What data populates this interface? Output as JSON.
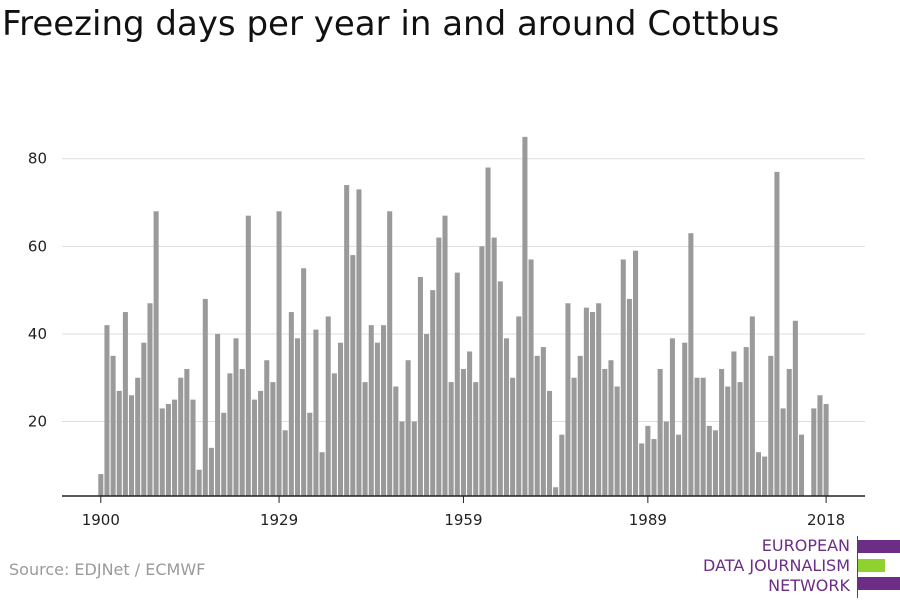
{
  "title": "Freezing days per year in and around Cottbus",
  "source": "Source: EDJNet / ECMWF",
  "logo": {
    "line1": "EUROPEAN",
    "line2": "DATA JOURNALISM",
    "line3": "NETWORK",
    "colors": [
      "#6b2d86",
      "#8fd12e",
      "#6b2d86"
    ]
  },
  "chart_data": {
    "type": "bar",
    "x_start": 1900,
    "x_end": 2018,
    "xticks": [
      1900,
      1929,
      1959,
      1989,
      2018
    ],
    "yticks": [
      20,
      40,
      60,
      80
    ],
    "ylim": [
      3,
      88
    ],
    "grid": true,
    "bar_color": "#9a9a9a",
    "values": [
      8,
      42,
      35,
      27,
      45,
      26,
      30,
      38,
      47,
      68,
      23,
      24,
      25,
      30,
      32,
      25,
      9,
      48,
      14,
      40,
      22,
      31,
      39,
      32,
      67,
      25,
      27,
      34,
      29,
      68,
      18,
      45,
      39,
      55,
      22,
      41,
      13,
      44,
      31,
      38,
      74,
      58,
      73,
      29,
      42,
      38,
      42,
      68,
      28,
      20,
      34,
      20,
      53,
      40,
      50,
      62,
      67,
      29,
      54,
      32,
      36,
      29,
      60,
      78,
      62,
      52,
      39,
      30,
      44,
      85,
      57,
      35,
      37,
      27,
      5,
      17,
      47,
      30,
      35,
      46,
      45,
      47,
      32,
      34,
      28,
      57,
      48,
      59,
      15,
      19,
      16,
      32,
      20,
      39,
      17,
      38,
      63,
      30,
      30,
      19,
      18,
      32,
      28,
      36,
      29,
      37,
      44,
      13,
      12,
      35,
      77,
      23,
      32,
      43,
      17,
      3,
      23,
      26,
      24
    ]
  }
}
